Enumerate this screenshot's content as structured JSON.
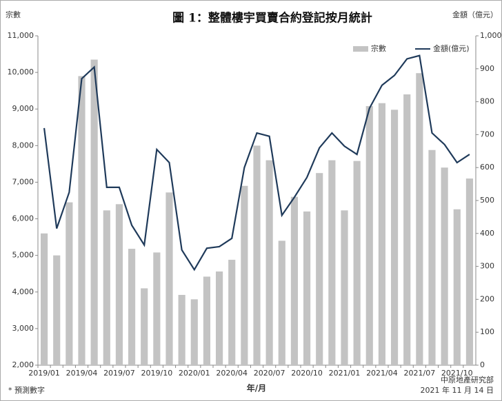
{
  "chart_data": {
    "type": "bar",
    "title": "圖 1：整體樓宇買賣合約登記按月統計",
    "y_label": "宗數",
    "y2_label": "金額（億元）",
    "x_label": "年/月",
    "note": "* 預測數字",
    "source": "中原地產研究部",
    "date": "2021 年 11 月 14 日",
    "categories": [
      "2019/01",
      null,
      null,
      "2019/04",
      null,
      null,
      "2019/07",
      null,
      null,
      "2019/10",
      null,
      null,
      "2020/01",
      null,
      null,
      "2020/04",
      null,
      null,
      "2020/07",
      null,
      null,
      "2020/10",
      null,
      null,
      "2021/01",
      null,
      null,
      "2021/04",
      null,
      null,
      "2021/07",
      null,
      null,
      "2021/10",
      null
    ],
    "series": [
      {
        "name": "宗數",
        "type": "bar",
        "axis": "y",
        "color": "#c3c3c3",
        "values": [
          5600,
          5000,
          6450,
          9900,
          10350,
          6230,
          6400,
          5180,
          4100,
          5080,
          6720,
          3920,
          3800,
          4420,
          4560,
          4880,
          6900,
          8000,
          7600,
          5400,
          6600,
          6200,
          7250,
          7600,
          6230,
          7580,
          9080,
          9160,
          8980,
          9400,
          9980,
          7880,
          7400,
          6260,
          7100
        ]
      },
      {
        "name": "金額(億元)",
        "type": "line",
        "axis": "y2",
        "color": "#1f3a5a",
        "values": [
          720,
          415,
          525,
          870,
          905,
          540,
          540,
          425,
          365,
          655,
          615,
          350,
          290,
          355,
          360,
          385,
          600,
          705,
          695,
          455,
          510,
          570,
          660,
          705,
          665,
          640,
          780,
          850,
          880,
          930,
          940,
          705,
          670,
          615,
          640
        ]
      }
    ],
    "ylim": [
      2000,
      11000
    ],
    "yticks": [
      {
        "value": 2000,
        "label": "2,000"
      },
      {
        "value": 3000,
        "label": "3,000"
      },
      {
        "value": 4000,
        "label": "4,000"
      },
      {
        "value": 5000,
        "label": "5,000"
      },
      {
        "value": 6000,
        "label": "6,000"
      },
      {
        "value": 7000,
        "label": "7,000"
      },
      {
        "value": 8000,
        "label": "8,000"
      },
      {
        "value": 9000,
        "label": "9,000"
      },
      {
        "value": 10000,
        "label": "10,000"
      },
      {
        "value": 11000,
        "label": "11,000"
      }
    ],
    "y2lim": [
      0,
      1000
    ],
    "y2ticks": [
      0,
      100,
      200,
      300,
      400,
      500,
      600,
      700,
      800,
      900,
      {
        "value": 1000,
        "label": "1,000"
      }
    ],
    "legend": "upper right"
  }
}
